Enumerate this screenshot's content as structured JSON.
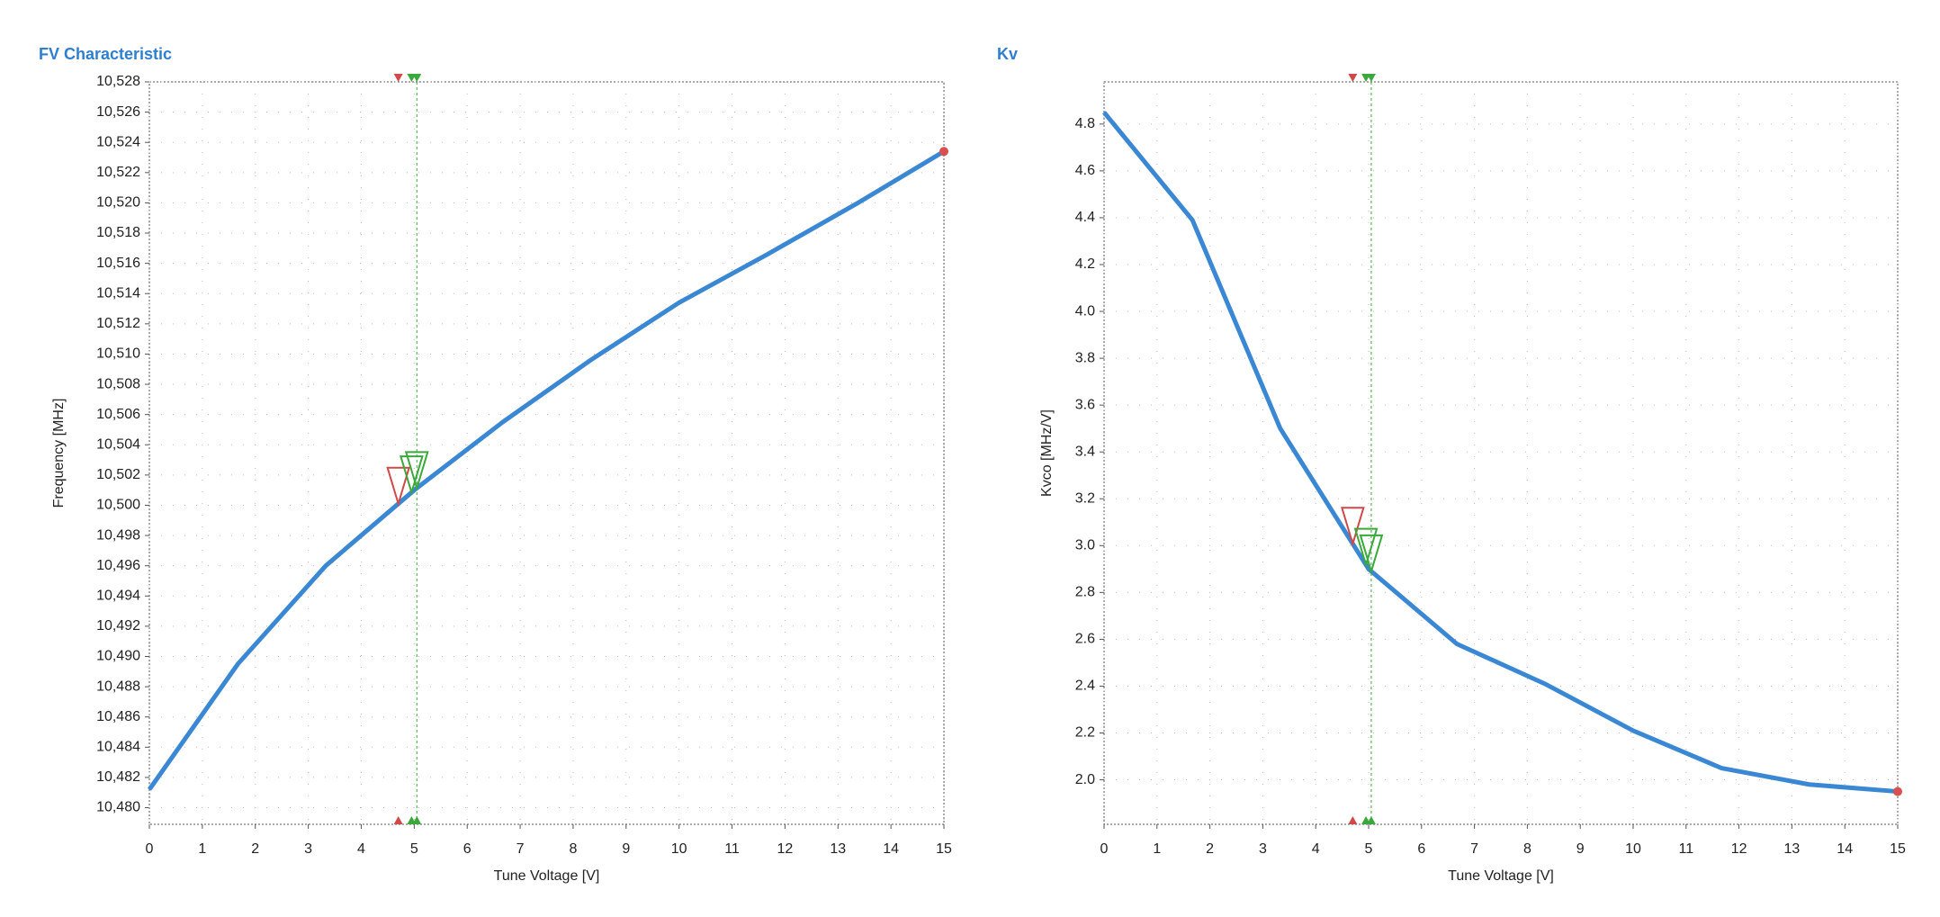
{
  "chart_data": [
    {
      "type": "line",
      "title": "FV Characteristic",
      "xlabel": "Tune Voltage [V]",
      "ylabel": "Frequency [MHz]",
      "x": [
        0,
        1.67,
        3.33,
        5,
        6.67,
        8.33,
        10,
        11.67,
        13.33,
        15
      ],
      "series": [
        {
          "color": "#3a87d4",
          "values": [
            10481.2,
            10489.5,
            10496,
            10501,
            10505.5,
            10509.6,
            10513.4,
            10516.6,
            10519.9,
            10523.4
          ]
        }
      ],
      "xlim": [
        0,
        15
      ],
      "xticks": [
        0,
        1,
        2,
        3,
        4,
        5,
        6,
        7,
        8,
        9,
        10,
        11,
        12,
        13,
        14,
        15
      ],
      "ylim": [
        10478.9,
        10528
      ],
      "yticks": [
        {
          "value": 10480,
          "label": "10,480"
        },
        {
          "value": 10482,
          "label": "10,482"
        },
        {
          "value": 10484,
          "label": "10,484"
        },
        {
          "value": 10486,
          "label": "10,486"
        },
        {
          "value": 10488,
          "label": "10,488"
        },
        {
          "value": 10490,
          "label": "10,490"
        },
        {
          "value": 10492,
          "label": "10,492"
        },
        {
          "value": 10494,
          "label": "10,494"
        },
        {
          "value": 10496,
          "label": "10,496"
        },
        {
          "value": 10498,
          "label": "10,498"
        },
        {
          "value": 10500,
          "label": "10,500"
        },
        {
          "value": 10502,
          "label": "10,502"
        },
        {
          "value": 10504,
          "label": "10,504"
        },
        {
          "value": 10506,
          "label": "10,506"
        },
        {
          "value": 10508,
          "label": "10,508"
        },
        {
          "value": 10510,
          "label": "10,510"
        },
        {
          "value": 10512,
          "label": "10,512"
        },
        {
          "value": 10514,
          "label": "10,514"
        },
        {
          "value": 10516,
          "label": "10,516"
        },
        {
          "value": 10518,
          "label": "10,518"
        },
        {
          "value": 10520,
          "label": "10,520"
        },
        {
          "value": 10522,
          "label": "10,522"
        },
        {
          "value": 10524,
          "label": "10,524"
        },
        {
          "value": 10526,
          "label": "10,526"
        },
        {
          "value": 10528,
          "label": "10,528"
        }
      ],
      "grid": true,
      "markers": [
        {
          "x": 4.7,
          "color": "#d04848"
        },
        {
          "x": 4.95,
          "color": "#3aa83a"
        },
        {
          "x": 5.05,
          "color": "#3aa83a"
        }
      ]
    },
    {
      "type": "line",
      "title": "Kv",
      "xlabel": "Tune Voltage [V]",
      "ylabel": "Kvco [MHz/V]",
      "x": [
        0,
        1.67,
        3.33,
        5,
        6.67,
        8.33,
        10,
        11.67,
        13.33,
        15
      ],
      "series": [
        {
          "color": "#3a87d4",
          "values": [
            4.85,
            4.39,
            3.5,
            2.9,
            2.58,
            2.41,
            2.21,
            2.05,
            1.98,
            1.95
          ]
        }
      ],
      "xlim": [
        0,
        15
      ],
      "xticks": [
        0,
        1,
        2,
        3,
        4,
        5,
        6,
        7,
        8,
        9,
        10,
        11,
        12,
        13,
        14,
        15
      ],
      "ylim": [
        1.81,
        4.98
      ],
      "yticks": [
        {
          "value": 2,
          "label": "2.0"
        },
        2.2,
        2.4,
        2.6,
        2.8,
        {
          "value": 3,
          "label": "3.0"
        },
        3.2,
        3.4,
        3.6,
        3.8,
        {
          "value": 4,
          "label": "4.0"
        },
        4.2,
        4.4,
        4.6,
        4.8
      ],
      "grid": true,
      "markers": [
        {
          "x": 4.7,
          "color": "#d04848"
        },
        {
          "x": 4.95,
          "color": "#3aa83a"
        },
        {
          "x": 5.05,
          "color": "#3aa83a"
        }
      ]
    }
  ]
}
